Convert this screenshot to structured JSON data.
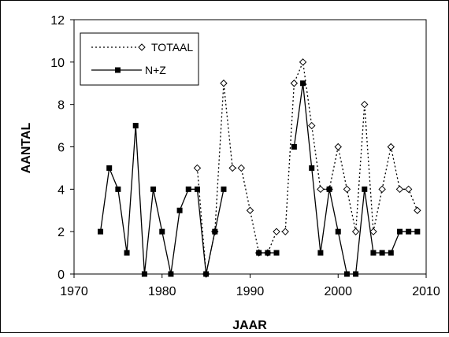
{
  "chart_data": {
    "type": "line",
    "xlabel": "JAAR",
    "ylabel": "AANTAL",
    "xlim": [
      1970,
      2010
    ],
    "ylim": [
      0,
      12
    ],
    "xticks": [
      1970,
      1980,
      1990,
      2000,
      2010
    ],
    "yticks": [
      0,
      2,
      4,
      6,
      8,
      10,
      12
    ],
    "grid": false,
    "legend_position": "top-left",
    "series": [
      {
        "name": "TOTAAL",
        "style": "dotted",
        "marker": "open-diamond",
        "color": "#000000",
        "x": [
          1984,
          1985,
          1986,
          1987,
          1988,
          1989,
          1990,
          1991,
          1992,
          1993,
          1994,
          1995,
          1996,
          1997,
          1998,
          1999,
          2000,
          2001,
          2002,
          2003,
          2004,
          2005,
          2006,
          2007,
          2008,
          2009
        ],
        "y": [
          5,
          0,
          2,
          9,
          5,
          5,
          3,
          1,
          1,
          2,
          2,
          9,
          10,
          7,
          4,
          4,
          6,
          4,
          2,
          8,
          2,
          4,
          6,
          4,
          4,
          3
        ]
      },
      {
        "name": "N+Z",
        "style": "solid",
        "marker": "filled-square",
        "color": "#000000",
        "x": [
          1973,
          1974,
          1975,
          1976,
          1977,
          1978,
          1979,
          1980,
          1981,
          1982,
          1983,
          1984,
          1985,
          1986,
          1987,
          null,
          1991,
          1992,
          1993,
          null,
          1995,
          1996,
          1997,
          1998,
          1999,
          2000,
          2001,
          2002,
          2003,
          2004,
          2005,
          2006,
          2007,
          2008,
          2009
        ],
        "y": [
          2,
          5,
          4,
          1,
          7,
          0,
          4,
          2,
          0,
          3,
          4,
          4,
          0,
          2,
          4,
          null,
          1,
          1,
          1,
          null,
          6,
          9,
          5,
          1,
          4,
          2,
          0,
          0,
          4,
          1,
          1,
          1,
          2,
          2,
          2
        ]
      }
    ]
  }
}
